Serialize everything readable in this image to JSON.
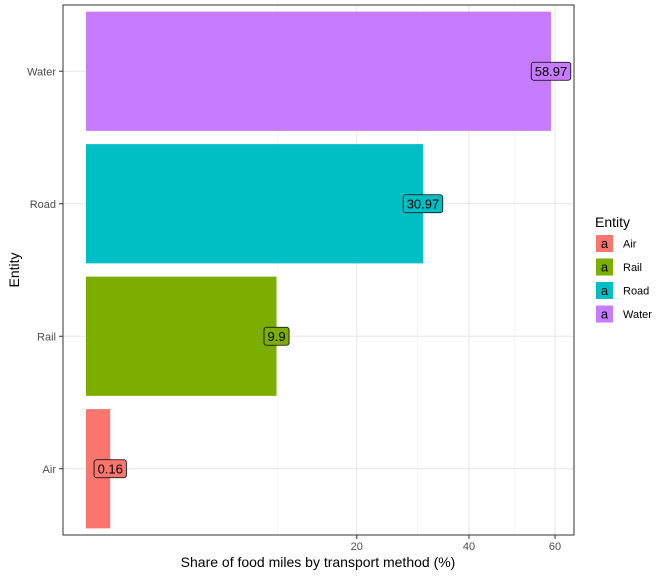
{
  "chart_data": {
    "type": "bar",
    "orientation": "horizontal",
    "categories": [
      "Air",
      "Rail",
      "Road",
      "Water"
    ],
    "values": [
      0.16,
      9.9,
      30.97,
      58.97
    ],
    "data_labels": [
      "0.16",
      "9.9",
      "30.97",
      "58.97"
    ],
    "colors": [
      "#F8766D",
      "#7CAE00",
      "#00BFC4",
      "#C77CFF"
    ],
    "title": "",
    "xlabel": "Share of food miles by transport method (%)",
    "ylabel": "Entity",
    "x_scale": "sqrt",
    "x_ticks": [
      20,
      40,
      60
    ],
    "x_tick_labels": [
      "20",
      "40",
      "60"
    ],
    "grid": true,
    "legend": {
      "title": "Entity",
      "position": "right",
      "key_glyph": "a",
      "items": [
        "Air",
        "Rail",
        "Road",
        "Water"
      ]
    }
  }
}
